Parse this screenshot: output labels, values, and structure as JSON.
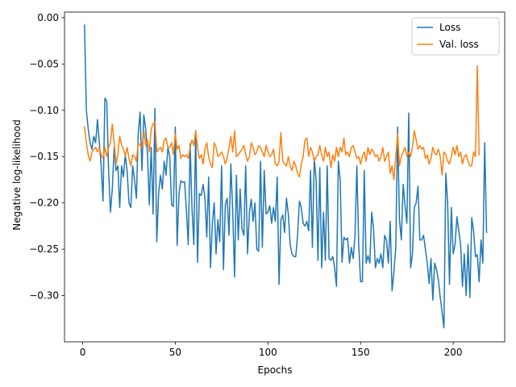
{
  "chart_data": {
    "type": "line",
    "xlabel": "Epochs",
    "ylabel": "Negative log-likelihood",
    "xlim": [
      -9.8,
      227.8
    ],
    "ylim": [
      -0.35,
      0.006
    ],
    "xticks": [
      0,
      50,
      100,
      150,
      200
    ],
    "yticks": [
      0.0,
      -0.05,
      -0.1,
      -0.15,
      -0.2,
      -0.25,
      -0.3
    ],
    "ytick_labels": [
      "0.00",
      "−0.05",
      "−0.10",
      "−0.15",
      "−0.20",
      "−0.25",
      "−0.30"
    ],
    "legend_position": "top-right",
    "grid": false,
    "series": [
      {
        "name": "Loss",
        "color": "#1f77b4",
        "x_start": 1,
        "values": [
          -0.008,
          -0.1,
          -0.12,
          -0.135,
          -0.142,
          -0.128,
          -0.135,
          -0.11,
          -0.135,
          -0.16,
          -0.198,
          -0.087,
          -0.09,
          -0.165,
          -0.21,
          -0.185,
          -0.14,
          -0.165,
          -0.16,
          -0.205,
          -0.16,
          -0.172,
          -0.148,
          -0.165,
          -0.2,
          -0.205,
          -0.16,
          -0.175,
          -0.195,
          -0.125,
          -0.102,
          -0.165,
          -0.105,
          -0.12,
          -0.148,
          -0.202,
          -0.14,
          -0.212,
          -0.098,
          -0.242,
          -0.19,
          -0.17,
          -0.185,
          -0.155,
          -0.17,
          -0.14,
          -0.15,
          -0.202,
          -0.204,
          -0.118,
          -0.246,
          -0.19,
          -0.176,
          -0.178,
          -0.177,
          -0.208,
          -0.245,
          -0.136,
          -0.205,
          -0.245,
          -0.122,
          -0.264,
          -0.19,
          -0.192,
          -0.18,
          -0.195,
          -0.237,
          -0.172,
          -0.27,
          -0.222,
          -0.2,
          -0.255,
          -0.218,
          -0.242,
          -0.16,
          -0.272,
          -0.202,
          -0.195,
          -0.235,
          -0.158,
          -0.21,
          -0.28,
          -0.17,
          -0.24,
          -0.185,
          -0.228,
          -0.235,
          -0.16,
          -0.255,
          -0.21,
          -0.196,
          -0.22,
          -0.2,
          -0.25,
          -0.252,
          -0.155,
          -0.248,
          -0.165,
          -0.212,
          -0.21,
          -0.203,
          -0.222,
          -0.205,
          -0.22,
          -0.172,
          -0.288,
          -0.218,
          -0.213,
          -0.232,
          -0.195,
          -0.212,
          -0.245,
          -0.255,
          -0.258,
          -0.258,
          -0.235,
          -0.198,
          -0.205,
          -0.222,
          -0.225,
          -0.22,
          -0.23,
          -0.165,
          -0.248,
          -0.152,
          -0.175,
          -0.262,
          -0.162,
          -0.27,
          -0.21,
          -0.262,
          -0.16,
          -0.26,
          -0.262,
          -0.258,
          -0.27,
          -0.29,
          -0.155,
          -0.175,
          -0.264,
          -0.237,
          -0.24,
          -0.238,
          -0.265,
          -0.248,
          -0.26,
          -0.235,
          -0.16,
          -0.245,
          -0.285,
          -0.285,
          -0.165,
          -0.265,
          -0.257,
          -0.265,
          -0.21,
          -0.228,
          -0.27,
          -0.26,
          -0.265,
          -0.255,
          -0.27,
          -0.235,
          -0.24,
          -0.265,
          -0.22,
          -0.295,
          -0.275,
          -0.248,
          -0.118,
          -0.218,
          -0.24,
          -0.18,
          -0.203,
          -0.222,
          -0.103,
          -0.27,
          -0.255,
          -0.205,
          -0.2,
          -0.182,
          -0.24,
          -0.24,
          -0.235,
          -0.25,
          -0.265,
          -0.287,
          -0.26,
          -0.305,
          -0.265,
          -0.272,
          -0.283,
          -0.302,
          -0.318,
          -0.335,
          -0.168,
          -0.2,
          -0.288,
          -0.205,
          -0.255,
          -0.245,
          -0.215,
          -0.23,
          -0.245,
          -0.29,
          -0.255,
          -0.3,
          -0.245,
          -0.302,
          -0.216,
          -0.23,
          -0.258,
          -0.256,
          -0.285,
          -0.24,
          -0.265,
          -0.135,
          -0.232
        ]
      },
      {
        "name": "Val. loss",
        "color": "#ff7f0e",
        "x_start": 1,
        "values": [
          -0.118,
          -0.135,
          -0.148,
          -0.155,
          -0.145,
          -0.142,
          -0.14,
          -0.145,
          -0.14,
          -0.148,
          -0.152,
          -0.14,
          -0.15,
          -0.14,
          -0.135,
          -0.115,
          -0.135,
          -0.158,
          -0.148,
          -0.128,
          -0.138,
          -0.142,
          -0.15,
          -0.14,
          -0.152,
          -0.16,
          -0.148,
          -0.15,
          -0.155,
          -0.135,
          -0.138,
          -0.14,
          -0.122,
          -0.138,
          -0.132,
          -0.145,
          -0.12,
          -0.115,
          -0.112,
          -0.145,
          -0.142,
          -0.14,
          -0.145,
          -0.132,
          -0.13,
          -0.14,
          -0.14,
          -0.135,
          -0.148,
          -0.125,
          -0.142,
          -0.138,
          -0.152,
          -0.148,
          -0.15,
          -0.148,
          -0.152,
          -0.14,
          -0.132,
          -0.138,
          -0.122,
          -0.14,
          -0.152,
          -0.148,
          -0.158,
          -0.142,
          -0.135,
          -0.15,
          -0.158,
          -0.162,
          -0.135,
          -0.14,
          -0.15,
          -0.148,
          -0.145,
          -0.15,
          -0.158,
          -0.152,
          -0.14,
          -0.128,
          -0.145,
          -0.122,
          -0.15,
          -0.148,
          -0.145,
          -0.142,
          -0.138,
          -0.148,
          -0.155,
          -0.15,
          -0.135,
          -0.14,
          -0.148,
          -0.145,
          -0.138,
          -0.14,
          -0.145,
          -0.15,
          -0.138,
          -0.145,
          -0.15,
          -0.148,
          -0.142,
          -0.158,
          -0.16,
          -0.155,
          -0.124,
          -0.155,
          -0.158,
          -0.16,
          -0.15,
          -0.16,
          -0.165,
          -0.155,
          -0.16,
          -0.168,
          -0.172,
          -0.158,
          -0.15,
          -0.132,
          -0.13,
          -0.15,
          -0.14,
          -0.145,
          -0.155,
          -0.15,
          -0.148,
          -0.138,
          -0.148,
          -0.155,
          -0.14,
          -0.15,
          -0.145,
          -0.162,
          -0.148,
          -0.155,
          -0.14,
          -0.15,
          -0.14,
          -0.145,
          -0.13,
          -0.148,
          -0.145,
          -0.15,
          -0.14,
          -0.138,
          -0.145,
          -0.152,
          -0.15,
          -0.158,
          -0.15,
          -0.145,
          -0.155,
          -0.14,
          -0.148,
          -0.142,
          -0.145,
          -0.15,
          -0.148,
          -0.155,
          -0.15,
          -0.14,
          -0.155,
          -0.15,
          -0.145,
          -0.168,
          -0.16,
          -0.175,
          -0.15,
          -0.125,
          -0.16,
          -0.15,
          -0.145,
          -0.14,
          -0.15,
          -0.145,
          -0.15,
          -0.14,
          -0.122,
          -0.132,
          -0.142,
          -0.138,
          -0.142,
          -0.14,
          -0.152,
          -0.148,
          -0.158,
          -0.152,
          -0.14,
          -0.146,
          -0.148,
          -0.142,
          -0.15,
          -0.17,
          -0.145,
          -0.148,
          -0.155,
          -0.158,
          -0.15,
          -0.14,
          -0.148,
          -0.138,
          -0.15,
          -0.145,
          -0.158,
          -0.15,
          -0.148,
          -0.155,
          -0.16,
          -0.16,
          -0.145,
          -0.15,
          -0.052,
          -0.148
        ]
      }
    ]
  }
}
